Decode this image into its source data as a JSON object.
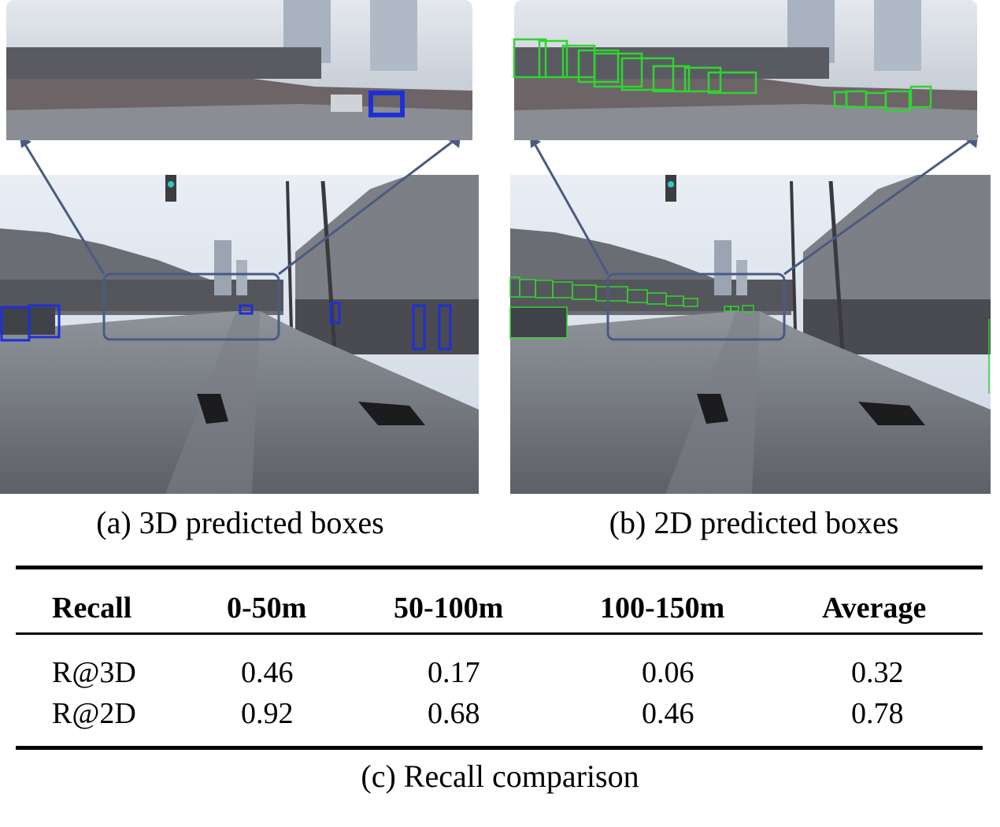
{
  "figure_a": {
    "caption": "(a) 3D predicted boxes",
    "box_color": "#1f2fd8"
  },
  "figure_b": {
    "caption": "(b) 2D predicted boxes",
    "box_color": "#2fd52f"
  },
  "table": {
    "columns": [
      "Recall",
      "0-50m",
      "50-100m",
      "100-150m",
      "Average"
    ],
    "rows": [
      {
        "label": "R@3D",
        "values": [
          "0.46",
          "0.17",
          "0.06",
          "0.32"
        ]
      },
      {
        "label": "R@2D",
        "values": [
          "0.92",
          "0.68",
          "0.46",
          "0.78"
        ]
      }
    ]
  },
  "caption_c": "(c) Recall comparison"
}
